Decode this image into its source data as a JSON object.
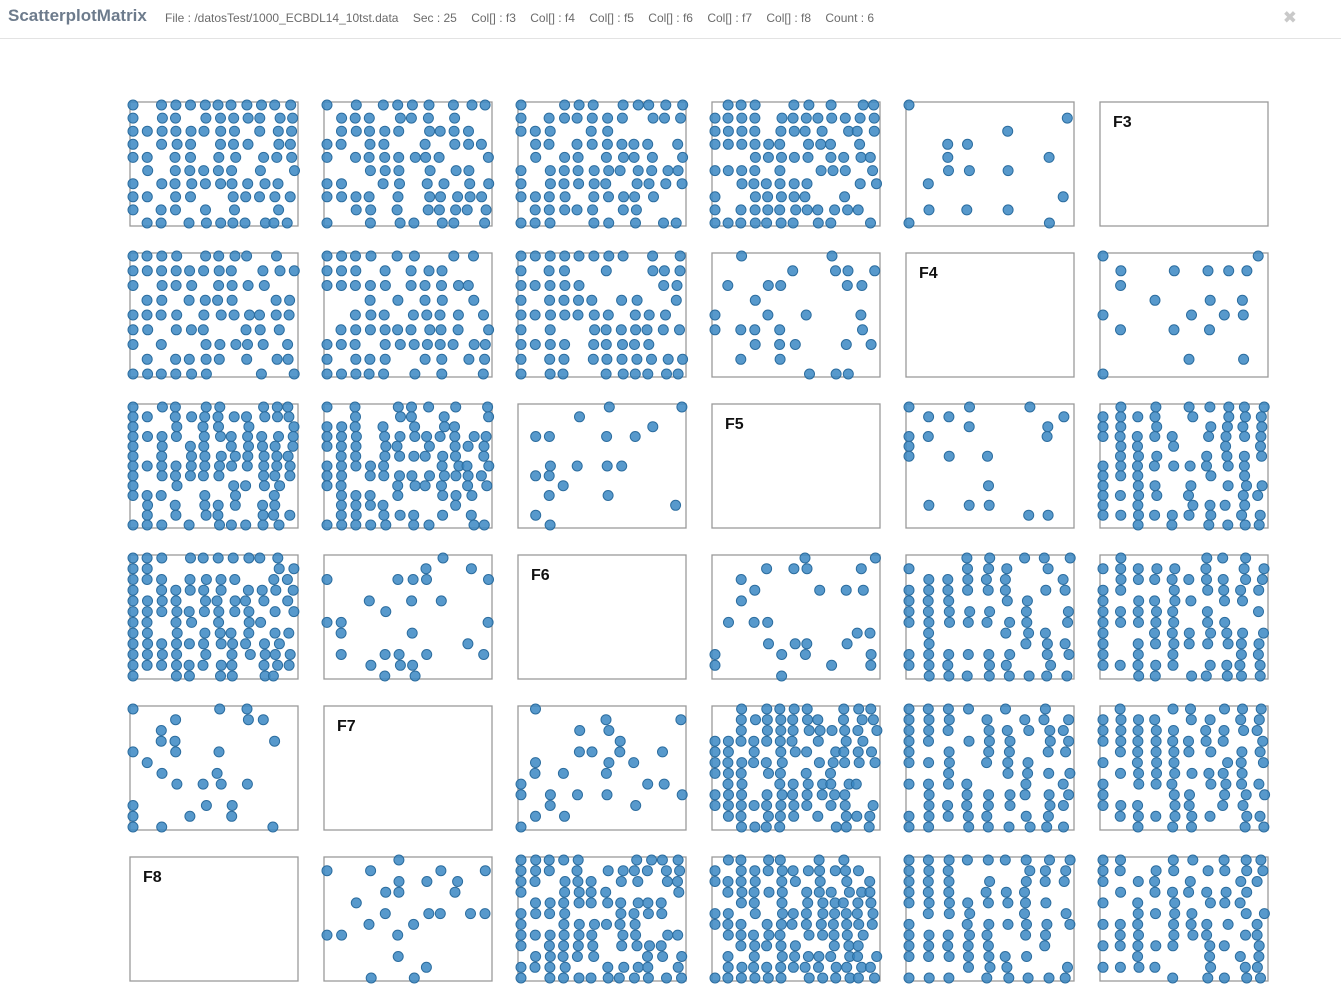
{
  "header": {
    "title": "ScatterplotMatrix",
    "info": [
      "File : /datosTest/1000_ECBDL14_10tst.data",
      "Sec : 25",
      "Col[] : f3",
      "Col[] : f4",
      "Col[] : f5",
      "Col[] : f6",
      "Col[] : f7",
      "Col[] : f8",
      "Count : 6"
    ],
    "close_icon": "times-icon"
  },
  "colors": {
    "point": "#3a87c3",
    "frame": "#9a9a9a",
    "title": "#6d7b8c"
  },
  "chart_data": {
    "type": "scatter",
    "variables": [
      "F3",
      "F4",
      "F5",
      "F6",
      "F7",
      "F8"
    ],
    "layout": "6x6 matrix; diagonal shows variable name; off-diagonal cells show pairwise scatter of 1000-row sample",
    "note": "Points per cell are dense discrete grid values; generated from seeded pattern approximating the picture",
    "grid": false
  }
}
